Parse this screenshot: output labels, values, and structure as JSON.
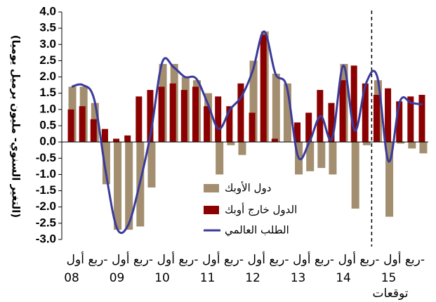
{
  "chart_data": {
    "type": "bar",
    "y_label": "(التغير السنوي- مليون برميل يوميا)",
    "category_prefix": "ربع أول-",
    "categories": [
      "08",
      null,
      null,
      null,
      "09",
      null,
      null,
      null,
      "10",
      null,
      null,
      null,
      "11",
      null,
      null,
      null,
      "12",
      null,
      null,
      null,
      "13",
      null,
      null,
      null,
      "14",
      null,
      null,
      null,
      "15",
      null,
      null,
      null
    ],
    "annotation": "توقعات",
    "series": [
      {
        "name": "دول الأوبك",
        "type": "bar",
        "color": "#a38e6f",
        "values": [
          1.7,
          1.7,
          1.2,
          -1.3,
          -2.7,
          -2.7,
          -2.6,
          -1.4,
          2.4,
          2.4,
          2.0,
          1.9,
          1.5,
          -1.0,
          -0.1,
          -0.4,
          2.5,
          3.4,
          2.1,
          1.8,
          -1.0,
          -0.9,
          -0.8,
          -1.0,
          2.4,
          -2.05,
          -0.1,
          1.9,
          -2.3,
          -0.05,
          -0.2,
          -0.35
        ]
      },
      {
        "name": "الدول خارج أوبك",
        "type": "bar",
        "color": "#8b0000",
        "values": [
          1.0,
          1.1,
          0.7,
          0.4,
          0.1,
          0.2,
          1.4,
          1.6,
          1.7,
          1.8,
          1.6,
          1.7,
          1.1,
          1.4,
          1.1,
          1.8,
          0.9,
          3.3,
          0.1,
          0.0,
          0.6,
          0.9,
          1.6,
          1.2,
          1.9,
          2.35,
          1.8,
          1.45,
          1.65,
          1.25,
          1.4,
          1.45
        ]
      },
      {
        "name": "الطلب العالمي",
        "type": "line",
        "color": "#3a3a9a",
        "values": [
          1.7,
          1.75,
          1.3,
          -0.9,
          -2.65,
          -2.55,
          -1.3,
          0.3,
          2.45,
          2.3,
          2.0,
          1.95,
          1.2,
          0.4,
          1.0,
          1.4,
          2.2,
          3.4,
          2.1,
          1.7,
          -0.45,
          0.0,
          0.8,
          0.1,
          2.35,
          0.35,
          1.8,
          2.0,
          -0.6,
          1.25,
          1.2,
          1.15
        ]
      }
    ],
    "ylim": [
      -3.0,
      4.0
    ],
    "yticks": [
      {
        "value": 4.0,
        "label": "4.0"
      },
      {
        "value": 3.5,
        "label": "3.5"
      },
      {
        "value": 3.0,
        "label": "3.0"
      },
      {
        "value": 2.5,
        "label": "2.5"
      },
      {
        "value": 2.0,
        "label": "2.0"
      },
      {
        "value": 1.5,
        "label": "1.5"
      },
      {
        "value": 1.0,
        "label": "1.0"
      },
      {
        "value": 0.5,
        "label": "0.5"
      },
      {
        "value": 0.0,
        "label": "0.0"
      },
      {
        "value": -0.5,
        "label": "-0.5"
      },
      {
        "value": -1.0,
        "label": "-1.0"
      },
      {
        "value": -1.5,
        "label": "-1.5"
      },
      {
        "value": -2.0,
        "label": "-2.0"
      },
      {
        "value": -2.5,
        "label": "-2.5"
      },
      {
        "value": -3.0,
        "label": "-3.0"
      }
    ],
    "grid": false
  }
}
